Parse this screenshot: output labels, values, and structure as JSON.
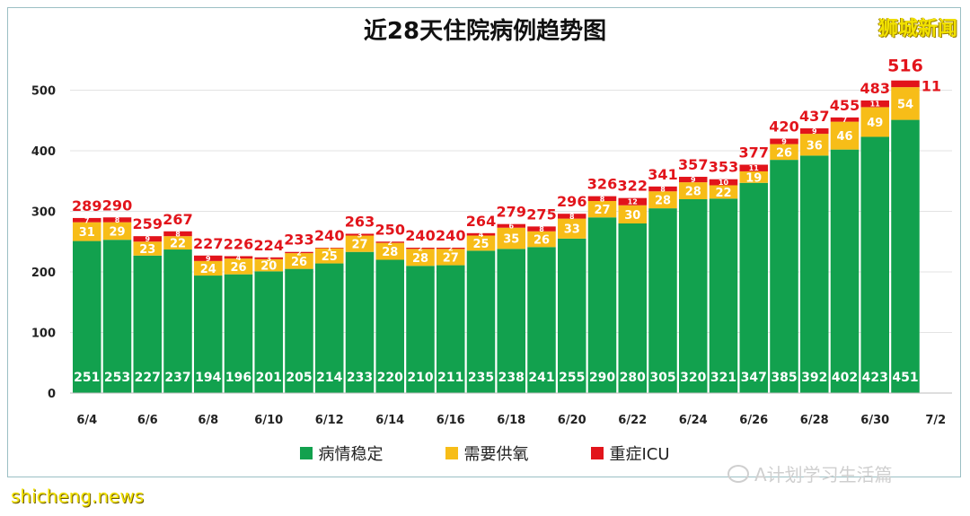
{
  "title": "近28天住院病例趋势图",
  "watermark_top": "狮城新闻",
  "watermark_bottom": "shicheng.news",
  "wechat_account": "A计划学习生活篇",
  "chart_data": {
    "type": "bar",
    "stacked": true,
    "categories": [
      "6/4",
      "6/5",
      "6/6",
      "6/7",
      "6/8",
      "6/9",
      "6/10",
      "6/11",
      "6/12",
      "6/13",
      "6/14",
      "6/15",
      "6/16",
      "6/17",
      "6/18",
      "6/19",
      "6/20",
      "6/21",
      "6/22",
      "6/23",
      "6/24",
      "6/25",
      "6/26",
      "6/27",
      "6/28",
      "6/29",
      "6/30",
      "7/1"
    ],
    "x_tick_labels": [
      "6/4",
      "6/6",
      "6/8",
      "6/10",
      "6/12",
      "6/14",
      "6/16",
      "6/18",
      "6/20",
      "6/22",
      "6/24",
      "6/26",
      "6/28",
      "6/30",
      "7/2"
    ],
    "series": [
      {
        "name": "病情稳定",
        "color": "#12a14e",
        "values": [
          251,
          253,
          227,
          237,
          194,
          196,
          201,
          205,
          214,
          233,
          220,
          210,
          211,
          235,
          238,
          241,
          255,
          290,
          280,
          305,
          320,
          321,
          347,
          385,
          392,
          402,
          423,
          451
        ]
      },
      {
        "name": "需要供氧",
        "color": "#f7bd18",
        "values": [
          31,
          29,
          23,
          22,
          24,
          26,
          20,
          26,
          25,
          27,
          28,
          28,
          27,
          25,
          35,
          26,
          33,
          27,
          30,
          28,
          28,
          22,
          19,
          26,
          36,
          46,
          49,
          54
        ]
      },
      {
        "name": "重症ICU",
        "color": "#e2141b",
        "values": [
          7,
          8,
          9,
          8,
          9,
          4,
          3,
          2,
          1,
          3,
          2,
          2,
          2,
          4,
          6,
          8,
          8,
          8,
          12,
          8,
          9,
          10,
          11,
          9,
          9,
          7,
          11,
          11
        ]
      }
    ],
    "totals": [
      289,
      290,
      259,
      267,
      227,
      226,
      224,
      233,
      240,
      263,
      250,
      240,
      240,
      264,
      279,
      275,
      296,
      326,
      322,
      341,
      357,
      353,
      377,
      420,
      437,
      455,
      483,
      516
    ],
    "yticks": [
      0,
      100,
      200,
      300,
      400,
      500
    ],
    "ylim": [
      0,
      560
    ],
    "grid": true,
    "legend_position": "bottom"
  }
}
